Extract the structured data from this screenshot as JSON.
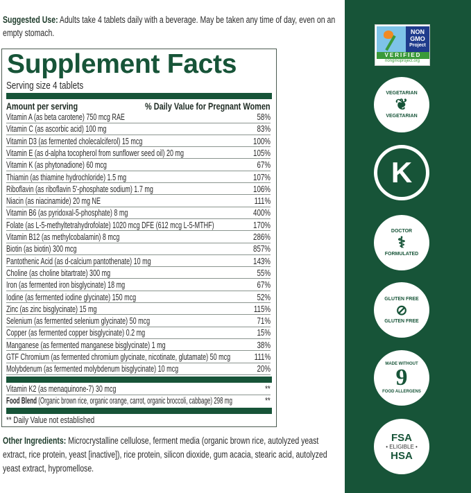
{
  "suggested_use": {
    "label": "Suggested Use:",
    "text": " Adults take 4 tablets daily with a beverage. May be taken any time of day, even on an empty stomach."
  },
  "facts": {
    "title": "Supplement Facts",
    "serving": "Serving size 4 tablets",
    "header_left": "Amount per serving",
    "header_right": "% Daily Value for Pregnant Women",
    "rows": [
      {
        "name": "Vitamin A (as beta carotene) 750 mcg RAE",
        "dv": "58%"
      },
      {
        "name": "Vitamin C (as ascorbic acid) 100 mg",
        "dv": "83%"
      },
      {
        "name": "Vitamin D3 (as fermented cholecalciferol) 15 mcg",
        "dv": "100%"
      },
      {
        "name": "Vitamin E (as d-alpha tocopherol from sunflower seed oil) 20 mg",
        "dv": "105%"
      },
      {
        "name": "Vitamin K (as phytonadione) 60 mcg",
        "dv": "67%"
      },
      {
        "name": "Thiamin (as thiamine hydrochloride) 1.5 mg",
        "dv": "107%"
      },
      {
        "name": "Riboflavin (as riboflavin 5'-phosphate sodium) 1.7 mg",
        "dv": "106%"
      },
      {
        "name": "Niacin (as niacinamide) 20 mg NE",
        "dv": "111%"
      },
      {
        "name": "Vitamin B6 (as pyridoxal-5-phosphate) 8 mg",
        "dv": "400%"
      },
      {
        "name": "Folate (as L-5-methyltetrahydrofolate) 1020 mcg DFE (612 mcg L-5-MTHF)",
        "dv": "170%"
      },
      {
        "name": "Vitamin B12 (as methylcobalamin) 8 mcg",
        "dv": "286%"
      },
      {
        "name": "Biotin (as biotin) 300 mcg",
        "dv": "857%"
      },
      {
        "name": "Pantothenic Acid (as d-calcium pantothenate) 10 mg",
        "dv": "143%"
      },
      {
        "name": "Choline (as choline bitartrate) 300 mg",
        "dv": "55%"
      },
      {
        "name": "Iron (as fermented iron bisglycinate) 18 mg",
        "dv": "67%"
      },
      {
        "name": "Iodine (as fermented iodine glycinate) 150 mcg",
        "dv": "52%"
      },
      {
        "name": "Zinc (as zinc bisglycinate) 15 mg",
        "dv": "115%"
      },
      {
        "name": "Selenium (as fermented selenium glycinate) 50 mcg",
        "dv": "71%"
      },
      {
        "name": "Copper (as fermented copper bisglycinate) 0.2 mg",
        "dv": "15%"
      },
      {
        "name": "Manganese (as fermented manganese bisglycinate) 1 mg",
        "dv": "38%"
      },
      {
        "name": "GTF Chromium (as fermented chromium glycinate, nicotinate, glutamate) 50 mcg",
        "dv": "111%"
      },
      {
        "name": "Molybdenum (as fermented molybdenum bisglycinate) 10 mcg",
        "dv": "20%"
      }
    ],
    "k2": {
      "name": "Vitamin K2 (as menaquinone-7) 30 mcg",
      "dv": "**"
    },
    "blend": {
      "label": "Food Blend",
      "name": " (Organic brown rice, organic orange, carrot, organic broccoli, cabbage) 298 mg",
      "dv": "**"
    },
    "footnote": "** Daily Value not established"
  },
  "other": {
    "label": "Other Ingredients:",
    "text": " Microcrystalline cellulose, ferment media (organic brown rice, autolyzed yeast extract, rice protein, yeast [inactive]), rice protein, silicon dioxide, gum acacia, stearic acid, autolyzed yeast extract, hypromellose."
  },
  "badges": {
    "nongmo": {
      "line1": "NON",
      "line2": "GMO",
      "line3": "Project",
      "verified": "VERIFIED",
      "url": "nongmoproject.org"
    },
    "vegetarian": "VEGETARIAN",
    "kosher": "K",
    "doctor": "DOCTOR",
    "formulated": "FORMULATED",
    "gluten": "GLUTEN FREE",
    "allergen_top": "MADE WITHOUT",
    "allergen_num": "9",
    "allergen_bottom": "FOOD ALLERGENS",
    "fsa": "FSA",
    "eligible": "• ELIGIBLE •",
    "hsa": "HSA"
  },
  "colors": {
    "brand_green": "#175438"
  }
}
